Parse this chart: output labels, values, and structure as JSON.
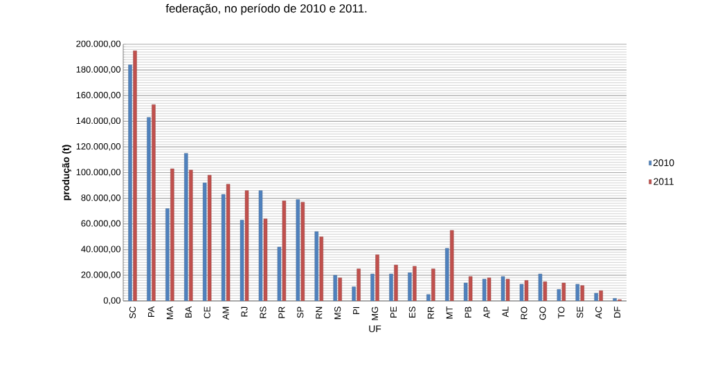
{
  "chart_data": {
    "type": "bar",
    "annotations": [
      "federação, no período de 2010 e 2011."
    ],
    "xlabel": "UF",
    "ylabel": "produção (t)",
    "categories": [
      "SC",
      "PA",
      "MA",
      "BA",
      "CE",
      "AM",
      "RJ",
      "RS",
      "PR",
      "SP",
      "RN",
      "MS",
      "PI",
      "MG",
      "PE",
      "ES",
      "RR",
      "MT",
      "PB",
      "AP",
      "AL",
      "RO",
      "GO",
      "TO",
      "SE",
      "AC",
      "DF"
    ],
    "series": [
      {
        "name": "2010",
        "color": "#4f81bd",
        "values": [
          184000,
          143000,
          72000,
          115000,
          92000,
          83000,
          63000,
          86000,
          42000,
          79000,
          54000,
          20000,
          11000,
          21000,
          21000,
          22000,
          5000,
          41000,
          14000,
          17000,
          19000,
          13000,
          21000,
          9000,
          13000,
          6000,
          2000
        ]
      },
      {
        "name": "2011",
        "color": "#c0504d",
        "values": [
          195000,
          153000,
          103000,
          102000,
          98000,
          91000,
          86000,
          64000,
          78000,
          77000,
          50000,
          18000,
          25000,
          36000,
          28000,
          27000,
          25000,
          55000,
          19000,
          18000,
          17000,
          16000,
          15000,
          14000,
          12000,
          8000,
          1000
        ]
      }
    ],
    "ylim": [
      0,
      200000
    ],
    "yticks": [
      {
        "value": 0,
        "label": "0,00"
      },
      {
        "value": 20000,
        "label": "20.000,00"
      },
      {
        "value": 40000,
        "label": "40.000,00"
      },
      {
        "value": 60000,
        "label": "60.000,00"
      },
      {
        "value": 80000,
        "label": "80.000,00"
      },
      {
        "value": 100000,
        "label": "100.000,00"
      },
      {
        "value": 120000,
        "label": "120.000,00"
      },
      {
        "value": 140000,
        "label": "140.000,00"
      },
      {
        "value": 160000,
        "label": "160.000,00"
      },
      {
        "value": 180000,
        "label": "180.000,00"
      },
      {
        "value": 200000,
        "label": "200.000,00"
      }
    ],
    "grid": true,
    "legend": "right"
  }
}
